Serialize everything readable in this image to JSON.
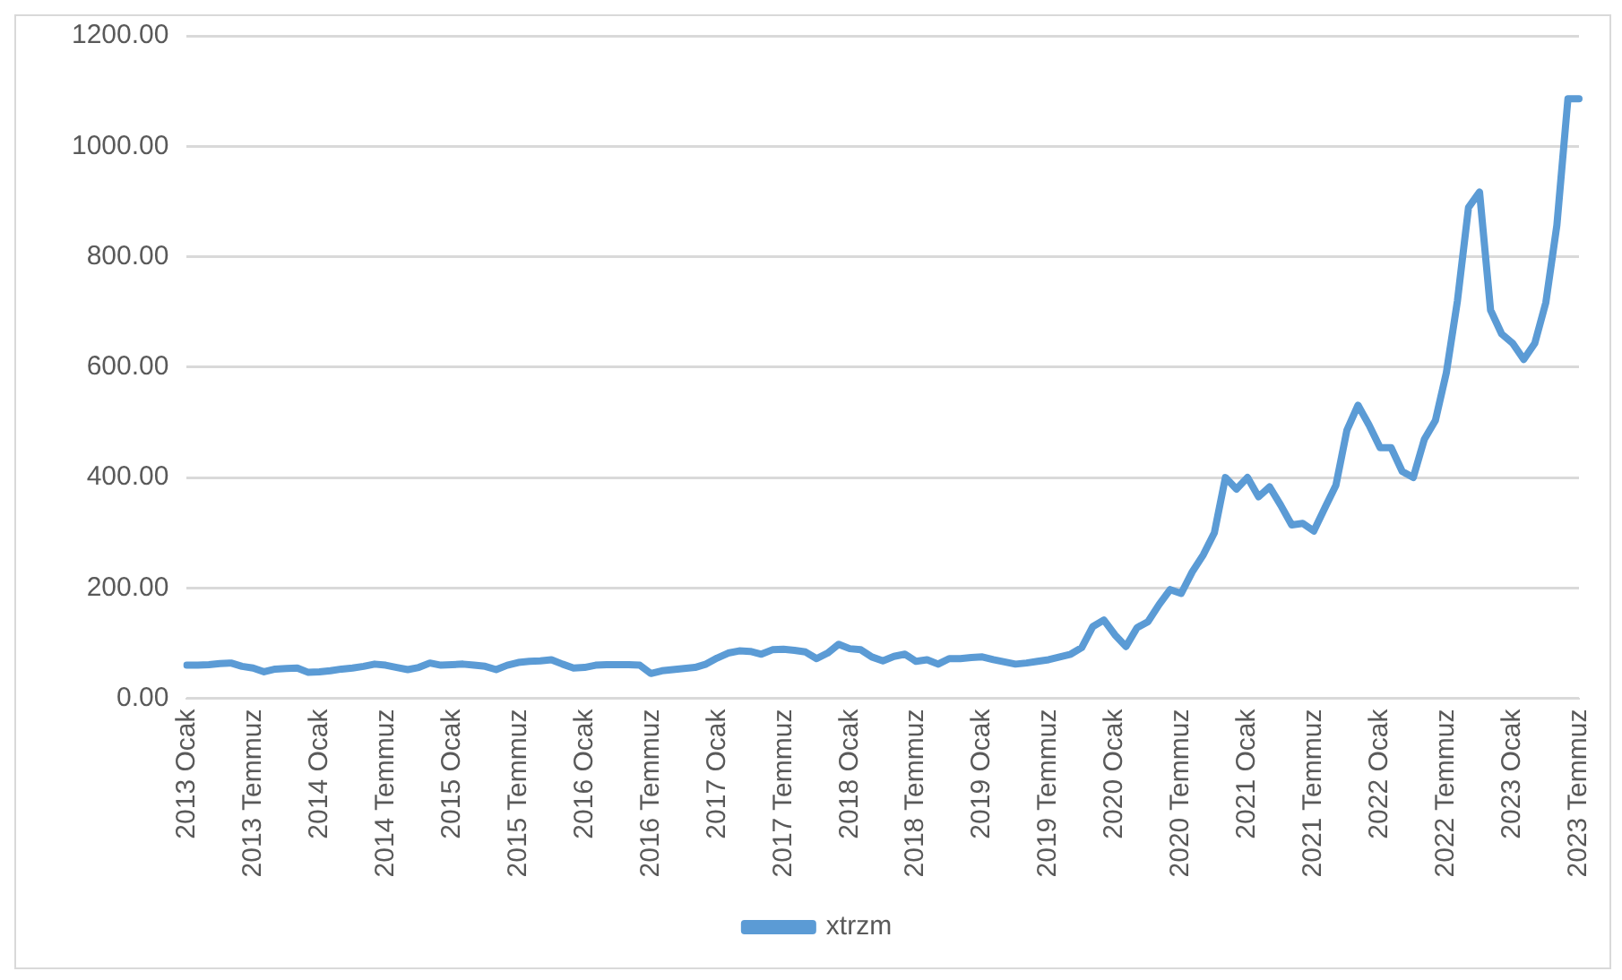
{
  "chart_data": {
    "type": "line",
    "categories": [
      "2013 Ocak",
      null,
      null,
      null,
      null,
      null,
      "2013 Temmuz",
      null,
      null,
      null,
      null,
      null,
      "2014 Ocak",
      null,
      null,
      null,
      null,
      null,
      "2014 Temmuz",
      null,
      null,
      null,
      null,
      null,
      "2015 Ocak",
      null,
      null,
      null,
      null,
      null,
      "2015 Temmuz",
      null,
      null,
      null,
      null,
      null,
      "2016 Ocak",
      null,
      null,
      null,
      null,
      null,
      "2016 Temmuz",
      null,
      null,
      null,
      null,
      null,
      "2017 Ocak",
      null,
      null,
      null,
      null,
      null,
      "2017 Temmuz",
      null,
      null,
      null,
      null,
      null,
      "2018 Ocak",
      null,
      null,
      null,
      null,
      null,
      "2018 Temmuz",
      null,
      null,
      null,
      null,
      null,
      "2019 Ocak",
      null,
      null,
      null,
      null,
      null,
      "2019 Temmuz",
      null,
      null,
      null,
      null,
      null,
      "2020 Ocak",
      null,
      null,
      null,
      null,
      null,
      "2020 Temmuz",
      null,
      null,
      null,
      null,
      null,
      "2021 Ocak",
      null,
      null,
      null,
      null,
      null,
      "2021 Temmuz",
      null,
      null,
      null,
      null,
      null,
      "2022 Ocak",
      null,
      null,
      null,
      null,
      null,
      "2022 Temmuz",
      null,
      null,
      null,
      null,
      null,
      "2023 Ocak",
      null,
      null,
      null,
      null,
      null,
      "2023 Temmuz"
    ],
    "series": [
      {
        "name": "xtrzm",
        "color": "#5b9bd5",
        "values": [
          60,
          60,
          61,
          63,
          64,
          58,
          55,
          48,
          53,
          54,
          55,
          47,
          48,
          50,
          53,
          55,
          58,
          62,
          60,
          56,
          52,
          56,
          64,
          60,
          61,
          62,
          60,
          58,
          52,
          60,
          65,
          67,
          68,
          70,
          62,
          55,
          56,
          60,
          61,
          61,
          61,
          60,
          45,
          50,
          52,
          54,
          56,
          62,
          73,
          82,
          86,
          85,
          80,
          88,
          89,
          87,
          84,
          72,
          82,
          98,
          90,
          88,
          75,
          68,
          76,
          80,
          67,
          70,
          62,
          72,
          72,
          74,
          75,
          70,
          66,
          62,
          64,
          67,
          70,
          75,
          80,
          92,
          130,
          142,
          115,
          94,
          128,
          139,
          170,
          197,
          190,
          229,
          260,
          300,
          400,
          379,
          400,
          365,
          383,
          350,
          314,
          317,
          303,
          345,
          386,
          486,
          531,
          495,
          454,
          454,
          411,
          400,
          469,
          503,
          590,
          720,
          889,
          917,
          703,
          660,
          643,
          614,
          643,
          717,
          857,
          1086,
          1086
        ]
      }
    ],
    "ylim": [
      0,
      1200
    ],
    "yticks": [
      {
        "value": 0,
        "label": "0.00"
      },
      {
        "value": 200,
        "label": "200.00"
      },
      {
        "value": 400,
        "label": "400.00"
      },
      {
        "value": 600,
        "label": "600.00"
      },
      {
        "value": 800,
        "label": "800.00"
      },
      {
        "value": 1000,
        "label": "1000.00"
      },
      {
        "value": 1200,
        "label": "1200.00"
      }
    ],
    "grid": "y",
    "legend": "bottom",
    "marker": "none",
    "line_style": "solid"
  }
}
